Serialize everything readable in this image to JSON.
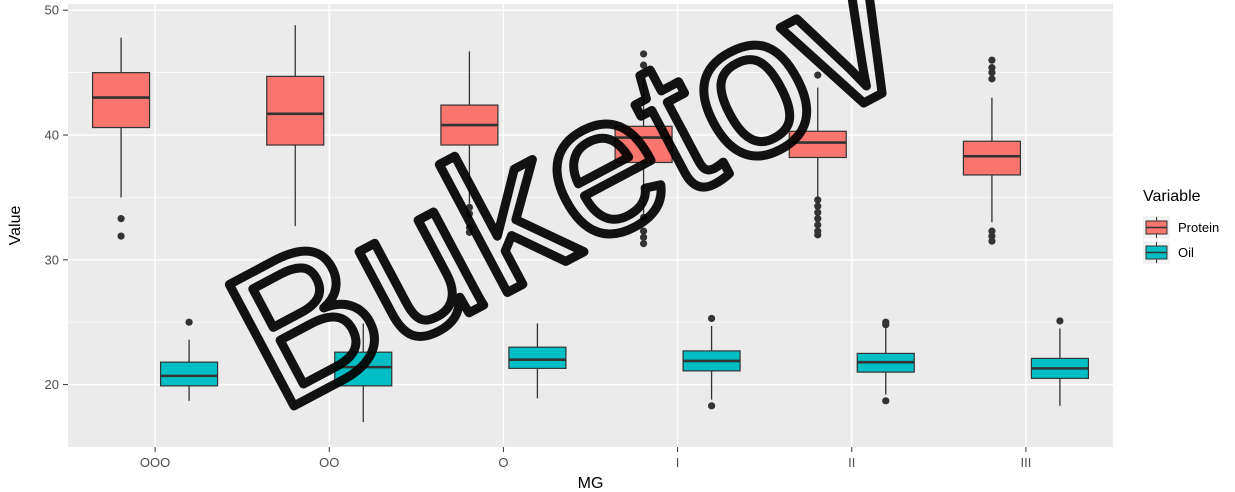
{
  "watermark": "Buketov",
  "chart_data": {
    "type": "box",
    "xlabel": "MG",
    "ylabel": "Value",
    "categories": [
      "OOO",
      "OO",
      "O",
      "I",
      "II",
      "III"
    ],
    "ylim": [
      15,
      50.5
    ],
    "yticks": [
      20,
      30,
      40,
      50
    ],
    "grid": true,
    "legend": {
      "title": "Variable",
      "position": "right"
    },
    "series": [
      {
        "name": "Protein",
        "color": "#F8766D",
        "boxes": [
          {
            "min": 35.0,
            "q1": 40.6,
            "median": 43.0,
            "q3": 45.0,
            "max": 47.8,
            "outliers": [
              33.3,
              31.9
            ]
          },
          {
            "min": 32.7,
            "q1": 39.2,
            "median": 41.7,
            "q3": 44.7,
            "max": 48.8,
            "outliers": []
          },
          {
            "min": 34.5,
            "q1": 39.2,
            "median": 40.8,
            "q3": 42.4,
            "max": 46.7,
            "outliers": [
              34.2,
              33.7,
              32.6,
              32.2
            ]
          },
          {
            "min": 33.7,
            "q1": 37.8,
            "median": 39.8,
            "q3": 40.7,
            "max": 44.5,
            "outliers": [
              46.5,
              45.6,
              33.4,
              32.3,
              31.8,
              31.3
            ]
          },
          {
            "min": 35.0,
            "q1": 38.2,
            "median": 39.4,
            "q3": 40.3,
            "max": 43.8,
            "outliers": [
              44.8,
              34.8,
              34.3,
              33.8,
              33.3,
              32.8,
              32.3,
              32.0
            ]
          },
          {
            "min": 33.0,
            "q1": 36.8,
            "median": 38.3,
            "q3": 39.5,
            "max": 43.0,
            "outliers": [
              46.0,
              45.4,
              45.0,
              44.5,
              32.3,
              31.9,
              31.5
            ]
          }
        ]
      },
      {
        "name": "Oil",
        "color": "#00BFC4",
        "boxes": [
          {
            "min": 18.7,
            "q1": 19.9,
            "median": 20.7,
            "q3": 21.8,
            "max": 23.6,
            "outliers": [
              25.0
            ]
          },
          {
            "min": 17.0,
            "q1": 19.9,
            "median": 21.4,
            "q3": 22.6,
            "max": 24.9,
            "outliers": []
          },
          {
            "min": 18.9,
            "q1": 21.3,
            "median": 22.0,
            "q3": 23.0,
            "max": 24.9,
            "outliers": []
          },
          {
            "min": 18.8,
            "q1": 21.1,
            "median": 21.9,
            "q3": 22.7,
            "max": 24.7,
            "outliers": [
              25.3,
              18.3
            ]
          },
          {
            "min": 19.2,
            "q1": 21.0,
            "median": 21.8,
            "q3": 22.5,
            "max": 24.7,
            "outliers": [
              25.0,
              24.8,
              18.7
            ]
          },
          {
            "min": 18.3,
            "q1": 20.5,
            "median": 21.3,
            "q3": 22.1,
            "max": 24.5,
            "outliers": [
              25.1
            ]
          }
        ]
      }
    ]
  }
}
